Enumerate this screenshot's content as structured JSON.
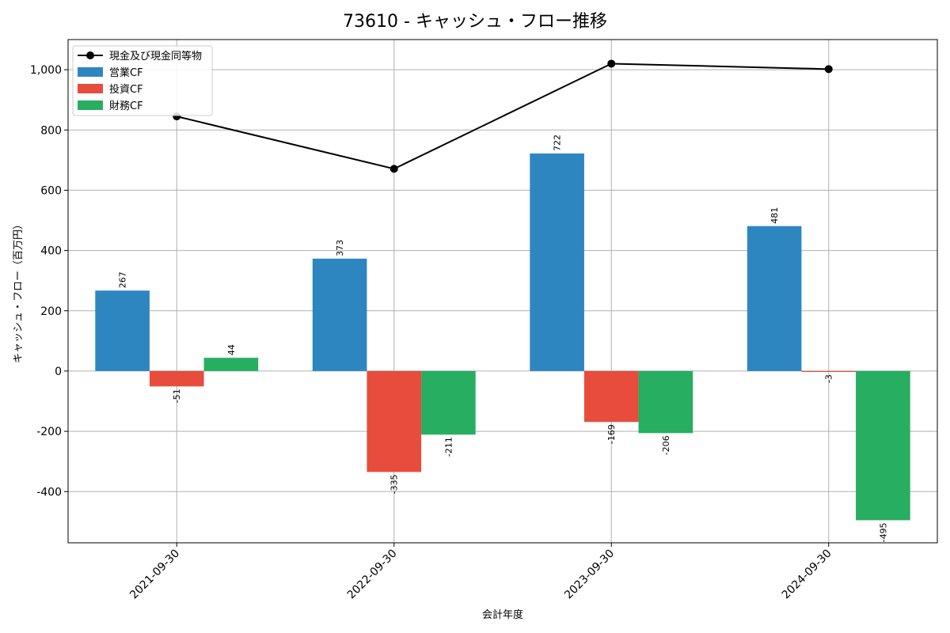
{
  "chart_data": {
    "type": "bar",
    "title": "73610 - キャッシュ・フロー推移",
    "xlabel": "会計年度",
    "ylabel": "キャッシュ・フロー（百万円）",
    "categories": [
      "2021-09-30",
      "2022-09-30",
      "2023-09-30",
      "2024-09-30"
    ],
    "series": [
      {
        "name": "営業CF",
        "kind": "bar",
        "color": "#2e86c1",
        "values": [
          267,
          373,
          722,
          481
        ]
      },
      {
        "name": "投資CF",
        "kind": "bar",
        "color": "#e74c3c",
        "values": [
          -51,
          -335,
          -169,
          -3
        ]
      },
      {
        "name": "財務CF",
        "kind": "bar",
        "color": "#27ae60",
        "values": [
          44,
          -211,
          -206,
          -495
        ]
      }
    ],
    "line": {
      "name": "現金及び現金同等物",
      "color": "#000000",
      "values": [
        845,
        671,
        1020,
        1002
      ]
    },
    "ylim": [
      -570,
      1100
    ],
    "yticks": [
      -400,
      -200,
      0,
      200,
      400,
      600,
      800,
      1000
    ],
    "ytick_labels": [
      "-400",
      "-200",
      "0",
      "200",
      "400",
      "600",
      "800",
      "1,000"
    ],
    "grid": true,
    "legend_position": "top-left"
  }
}
